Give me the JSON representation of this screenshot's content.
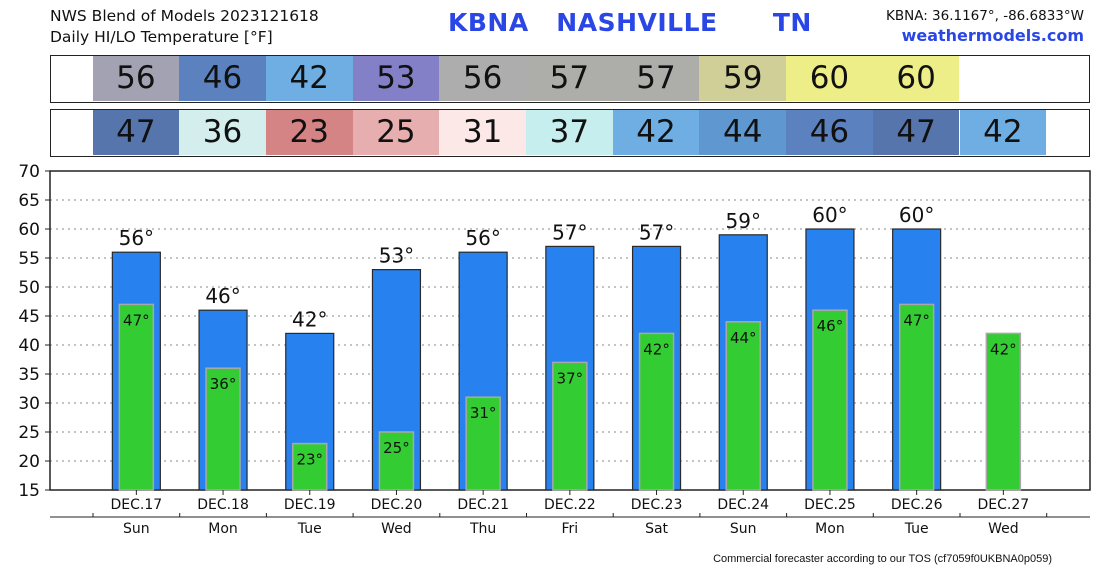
{
  "header": {
    "title_line1": "NWS Blend of Models 2023121618",
    "title_line2": "Daily HI/LO Temperature [°F]",
    "station": "KBNA   NASHVILLE      TN",
    "coords": "KBNA: 36.1167°, -86.6833°W",
    "site": "weathermodels.com"
  },
  "footer": "Commercial forecaster according to our TOS (cf7059f0UKBNA0p059)",
  "strip_high": [
    {
      "value": "56",
      "color": "#a3a2b2"
    },
    {
      "value": "46",
      "color": "#5b82bf"
    },
    {
      "value": "42",
      "color": "#6eaee2"
    },
    {
      "value": "53",
      "color": "#8380c8"
    },
    {
      "value": "56",
      "color": "#adadad"
    },
    {
      "value": "57",
      "color": "#adadaa"
    },
    {
      "value": "57",
      "color": "#adadaa"
    },
    {
      "value": "59",
      "color": "#d0cf98"
    },
    {
      "value": "60",
      "color": "#eeee88"
    },
    {
      "value": "60",
      "color": "#eeee88"
    }
  ],
  "strip_low": [
    {
      "value": "47",
      "color": "#5775ad"
    },
    {
      "value": "36",
      "color": "#d4eeee"
    },
    {
      "value": "23",
      "color": "#d48484"
    },
    {
      "value": "25",
      "color": "#e6aeae"
    },
    {
      "value": "31",
      "color": "#fde8e8"
    },
    {
      "value": "37",
      "color": "#c6eeee"
    },
    {
      "value": "42",
      "color": "#6eaee2"
    },
    {
      "value": "44",
      "color": "#5f98d0"
    },
    {
      "value": "46",
      "color": "#5b82bf"
    },
    {
      "value": "47",
      "color": "#5775ad"
    },
    {
      "value": "42",
      "color": "#6eaee2"
    }
  ],
  "chart_data": {
    "type": "bar",
    "title": "Daily HI/LO Temperature [°F]",
    "ylim": [
      15,
      70
    ],
    "yticks": [
      "15",
      "20",
      "25",
      "30",
      "35",
      "40",
      "45",
      "50",
      "55",
      "60",
      "65",
      "70"
    ],
    "grid": true,
    "categories": [
      "DEC.17",
      "DEC.18",
      "DEC.19",
      "DEC.20",
      "DEC.21",
      "DEC.22",
      "DEC.23",
      "DEC.24",
      "DEC.25",
      "DEC.26",
      "DEC.27"
    ],
    "weekdays": [
      "Sun",
      "Mon",
      "Tue",
      "Wed",
      "Thu",
      "Fri",
      "Sat",
      "Sun",
      "Mon",
      "Tue",
      "Wed"
    ],
    "series": [
      {
        "values": [
          56,
          46,
          42,
          53,
          56,
          57,
          57,
          59,
          60,
          60,
          null
        ],
        "color": "#2781ee"
      },
      {
        "values": [
          47,
          36,
          23,
          25,
          31,
          37,
          42,
          44,
          46,
          47,
          42
        ],
        "color": "#33cc33"
      }
    ],
    "high_labels": [
      "56°",
      "46°",
      "42°",
      "53°",
      "56°",
      "57°",
      "57°",
      "59°",
      "60°",
      "60°",
      ""
    ],
    "low_labels": [
      "47°",
      "36°",
      "23°",
      "25°",
      "31°",
      "37°",
      "42°",
      "44°",
      "46°",
      "47°",
      "42°"
    ]
  }
}
